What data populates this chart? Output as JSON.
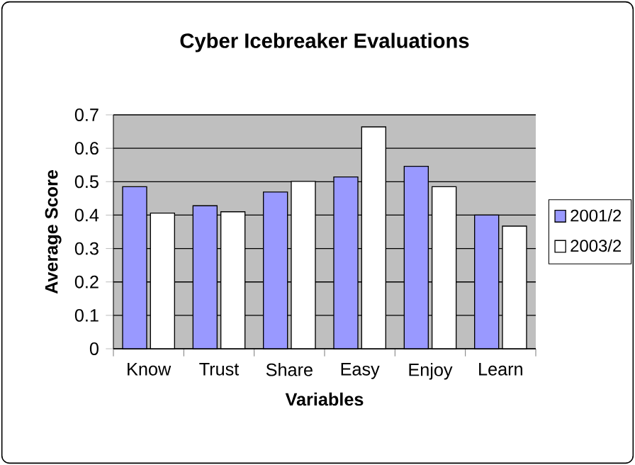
{
  "chart_data": {
    "type": "bar",
    "title": "Cyber Icebreaker Evaluations",
    "xlabel": "Variables",
    "ylabel": "Average Score",
    "categories": [
      "Know",
      "Trust",
      "Share",
      "Easy",
      "Enjoy",
      "Learn"
    ],
    "series": [
      {
        "name": "2001/2",
        "color": "#9999ff",
        "values": [
          0.485,
          0.428,
          0.469,
          0.514,
          0.546,
          0.4
        ]
      },
      {
        "name": "2003/2",
        "color": "#ffffff",
        "values": [
          0.406,
          0.41,
          0.501,
          0.664,
          0.485,
          0.367
        ]
      }
    ],
    "ylim": [
      0,
      0.7
    ],
    "yticks": [
      0,
      0.1,
      0.2,
      0.3,
      0.4,
      0.5,
      0.6,
      0.7
    ],
    "grid": "y",
    "legend": "right"
  }
}
